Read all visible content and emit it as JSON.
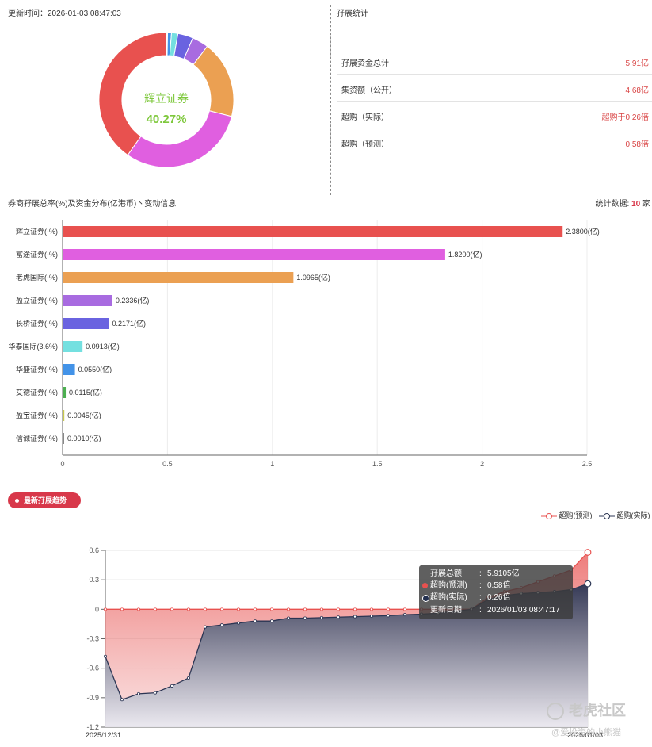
{
  "header": {
    "update_label": "更新时间：",
    "update_time": "2026-01-03 08:47:03",
    "stats_title": "孖展统计"
  },
  "donut": {
    "center_name": "辉立证券",
    "center_pct": "40.27%",
    "center_color": "#7ec83c"
  },
  "stats": [
    {
      "label": "孖展资金总计",
      "value": "5.91亿"
    },
    {
      "label": "集资额（公开）",
      "value": "4.68亿"
    },
    {
      "label": "超购（实际）",
      "value": "超购于0.26倍"
    },
    {
      "label": "超购（预测）",
      "value": "0.58倍"
    }
  ],
  "bar_section": {
    "title": "券商孖展总率(%)及资金分布(亿港币)丶变动信息",
    "count_label": "统计数据:",
    "count_value": "10",
    "count_unit": "家"
  },
  "trend": {
    "badge": "最新孖展趋势",
    "legend_pred": "超购(预测)",
    "legend_actual": "超购(实际)",
    "x_start": "2025/12/31",
    "x_end": "2026/01/03",
    "tooltip": {
      "rows": [
        {
          "k": "孖展总额",
          "v": "5.9105亿"
        },
        {
          "k": "超购(预测)",
          "v": "0.58倍"
        },
        {
          "k": "超购(实际)",
          "v": "0.26倍"
        },
        {
          "k": "更新日期",
          "v": "2026/01/03 08:47:17"
        }
      ]
    }
  },
  "watermark": {
    "brand": "老虎社区",
    "user": "@爱投资的小熊猫"
  },
  "colors": {
    "red": "#e8514f",
    "magenta": "#e05fe0",
    "orange": "#eba052",
    "purple": "#a86be0",
    "indigo": "#6a63e0",
    "cyan": "#74e0e0",
    "blue": "#4393e8",
    "green": "#4caf50",
    "navy": "#2b3553",
    "accent": "#d8384a"
  },
  "chart_data": [
    {
      "type": "pie",
      "variant": "donut",
      "title": "",
      "labels": [
        "辉立证券",
        "富途证券",
        "老虎国际",
        "盈立证券",
        "长桥证券",
        "华泰国际",
        "华盛证券",
        "艾德证券",
        "盈宝证券",
        "信诚证券"
      ],
      "values": [
        2.38,
        1.82,
        1.0965,
        0.2336,
        0.2171,
        0.0913,
        0.055,
        0.0115,
        0.0045,
        0.001
      ],
      "colors": [
        "#e8514f",
        "#e05fe0",
        "#eba052",
        "#a86be0",
        "#6a63e0",
        "#74e0e0",
        "#4393e8",
        "#4caf50",
        "#c9c94e",
        "#888888"
      ]
    },
    {
      "type": "bar",
      "orientation": "horizontal",
      "title": "券商孖展总率(%)及资金分布(亿港币)丶变动信息",
      "categories": [
        "辉立证券(-%)",
        "富途证券(-%)",
        "老虎国际(-%)",
        "盈立证券(-%)",
        "长桥证券(-%)",
        "华泰国际(3.6%)",
        "华盛证券(-%)",
        "艾德证券(-%)",
        "盈宝证券(-%)",
        "信诚证券(-%)"
      ],
      "values": [
        2.38,
        1.82,
        1.0965,
        0.2336,
        0.2171,
        0.0913,
        0.055,
        0.0115,
        0.0045,
        0.001
      ],
      "value_labels": [
        "2.3800(亿)",
        "1.8200(亿)",
        "1.0965(亿)",
        "0.2336(亿)",
        "0.2171(亿)",
        "0.0913(亿)",
        "0.0550(亿)",
        "0.0115(亿)",
        "0.0045(亿)",
        "0.0010(亿)"
      ],
      "xlim": [
        0,
        2.5
      ],
      "xticks": [
        "0",
        "0.5",
        "1",
        "1.5",
        "2",
        "2.5"
      ],
      "colors": [
        "#e8514f",
        "#e05fe0",
        "#eba052",
        "#a86be0",
        "#6a63e0",
        "#74e0e0",
        "#4393e8",
        "#4caf50",
        "#c9c94e",
        "#888888"
      ]
    },
    {
      "type": "area",
      "title": "最新孖展趋势",
      "x_labels": [
        "2025/12/31",
        "2026/01/03"
      ],
      "ylim": [
        -1.2,
        0.6
      ],
      "yticks": [
        "0.6",
        "0.3",
        "0",
        "-0.3",
        "-0.6",
        "-0.9",
        "-1.2"
      ],
      "series": [
        {
          "name": "超购(预测)",
          "color": "#e8514f",
          "values": [
            0,
            0,
            0,
            0,
            0,
            0,
            0,
            0,
            0,
            0,
            0,
            0,
            0,
            0,
            0,
            0,
            0,
            0,
            0,
            0,
            0,
            0,
            0.0,
            0.12,
            0.18,
            0.22,
            0.28,
            0.34,
            0.4,
            0.58
          ]
        },
        {
          "name": "超购(实际)",
          "color": "#2b3553",
          "values": [
            -0.48,
            -0.92,
            -0.86,
            -0.85,
            -0.78,
            -0.7,
            -0.18,
            -0.16,
            -0.14,
            -0.12,
            -0.12,
            -0.09,
            -0.09,
            -0.085,
            -0.08,
            -0.075,
            -0.07,
            -0.065,
            -0.055,
            -0.05,
            -0.04,
            -0.02,
            0.0,
            0.1,
            0.14,
            0.16,
            0.17,
            0.18,
            0.2,
            0.26
          ]
        }
      ]
    }
  ]
}
